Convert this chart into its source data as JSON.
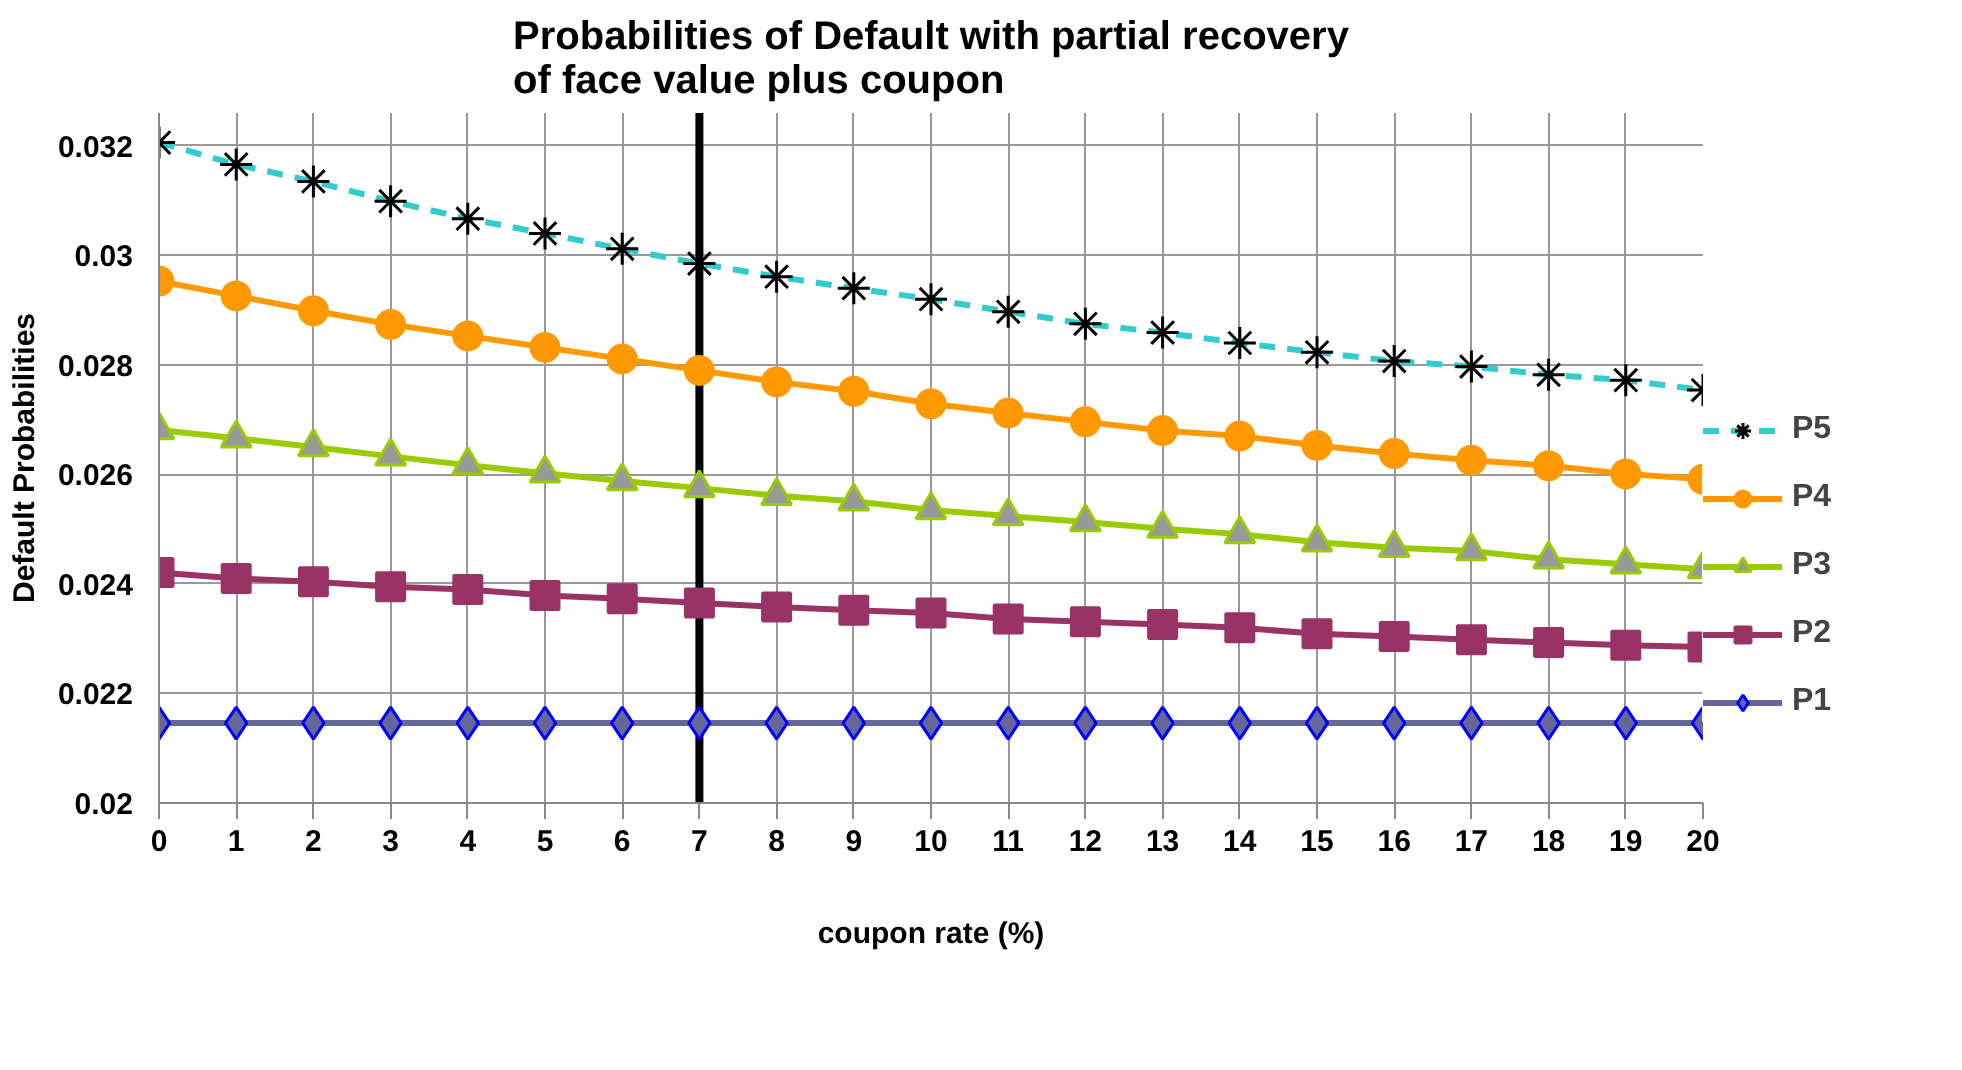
{
  "chart_data": {
    "type": "line",
    "title": "Probabilities of Default with partial recovery of face value plus coupon",
    "xlabel": "coupon rate (%)",
    "ylabel": "Default Probabilities",
    "x": [
      0,
      1,
      2,
      3,
      4,
      5,
      6,
      7,
      8,
      9,
      10,
      11,
      12,
      13,
      14,
      15,
      16,
      17,
      18,
      19,
      20
    ],
    "xlim": [
      0,
      20
    ],
    "xticks": [
      0,
      1,
      2,
      3,
      4,
      5,
      6,
      7,
      8,
      9,
      10,
      11,
      12,
      13,
      14,
      15,
      16,
      17,
      18,
      19,
      20
    ],
    "ylim": [
      0.02,
      0.0326
    ],
    "yticks": [
      0.02,
      0.022,
      0.024,
      0.026,
      0.028,
      0.03,
      0.032
    ],
    "grid": true,
    "legend": "right",
    "ref_lines": [
      {
        "axis": "x",
        "value": 7,
        "color": "#000000"
      }
    ],
    "series": [
      {
        "name": "P5",
        "color": "#33cccc",
        "marker": "cross",
        "line_style": "dashed",
        "values": [
          0.03206,
          0.03166,
          0.03135,
          0.03099,
          0.03067,
          0.0304,
          0.03012,
          0.02985,
          0.02961,
          0.0294,
          0.0292,
          0.02897,
          0.02875,
          0.02859,
          0.0284,
          0.02823,
          0.02807,
          0.02797,
          0.02782,
          0.02772,
          0.02754
        ]
      },
      {
        "name": "P4",
        "color": "#ff9900",
        "marker": "circle",
        "line_style": "solid",
        "values": [
          0.02953,
          0.02926,
          0.02899,
          0.02874,
          0.02853,
          0.02832,
          0.02811,
          0.0279,
          0.02769,
          0.02752,
          0.02729,
          0.02712,
          0.02696,
          0.0268,
          0.0267,
          0.02653,
          0.02638,
          0.02626,
          0.02616,
          0.02601,
          0.02591
        ]
      },
      {
        "name": "P3",
        "color": "#99cc00",
        "marker": "triangle",
        "line_style": "solid",
        "values": [
          0.02681,
          0.02666,
          0.0265,
          0.02633,
          0.02617,
          0.02602,
          0.02588,
          0.02575,
          0.02561,
          0.02551,
          0.02535,
          0.02524,
          0.02513,
          0.02501,
          0.02491,
          0.02476,
          0.02466,
          0.0246,
          0.02445,
          0.02436,
          0.02427
        ]
      },
      {
        "name": "P2",
        "color": "#993366",
        "marker": "square",
        "line_style": "solid",
        "values": [
          0.02421,
          0.0241,
          0.02404,
          0.02395,
          0.0239,
          0.02379,
          0.02373,
          0.02365,
          0.02358,
          0.02352,
          0.02347,
          0.02336,
          0.02331,
          0.02326,
          0.0232,
          0.02309,
          0.02304,
          0.02298,
          0.02293,
          0.02288,
          0.02285
        ]
      },
      {
        "name": "P1",
        "color": "#666699",
        "marker": "diamond",
        "line_style": "solid",
        "values": [
          0.02146,
          0.02146,
          0.02146,
          0.02146,
          0.02146,
          0.02146,
          0.02146,
          0.02146,
          0.02146,
          0.02146,
          0.02146,
          0.02146,
          0.02146,
          0.02146,
          0.02146,
          0.02146,
          0.02146,
          0.02146,
          0.02146,
          0.02146,
          0.02146
        ]
      }
    ]
  }
}
